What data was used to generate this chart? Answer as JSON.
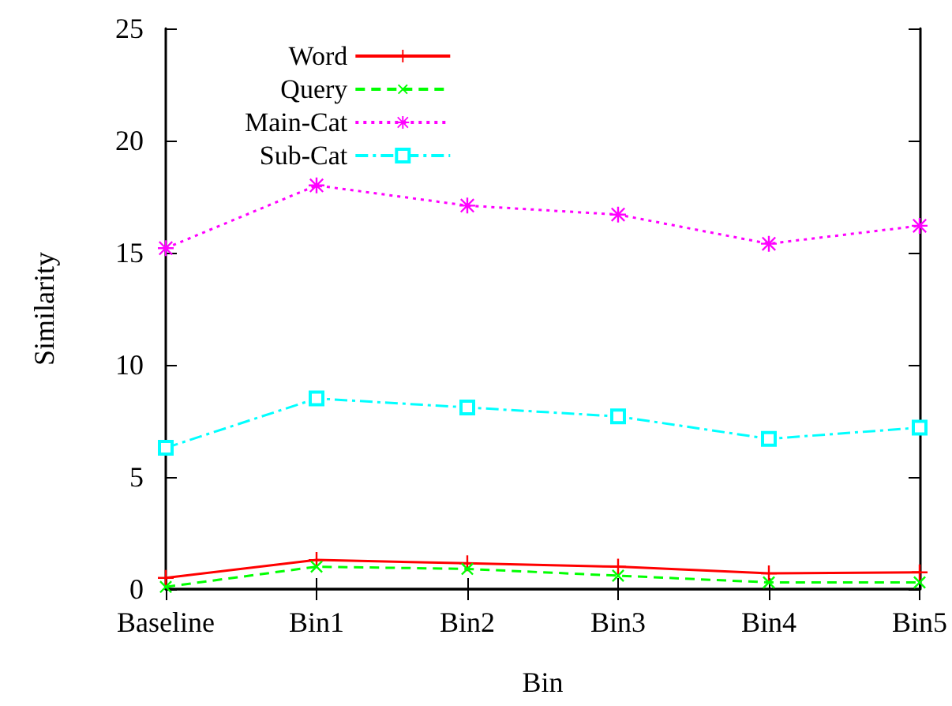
{
  "chart_data": {
    "type": "line",
    "xlabel": "Bin",
    "ylabel": "Similarity",
    "categories": [
      "Baseline",
      "Bin1",
      "Bin2",
      "Bin3",
      "Bin4",
      "Bin5"
    ],
    "ylim": [
      0,
      25
    ],
    "yticks": [
      0,
      5,
      10,
      15,
      20,
      25
    ],
    "grid": false,
    "legend": "top left",
    "series": [
      {
        "name": "Word",
        "color": "#ff0000",
        "marker": "cross",
        "line_style": "solid",
        "values": [
          0.5,
          1.3,
          1.15,
          1.0,
          0.7,
          0.75
        ]
      },
      {
        "name": "Query",
        "color": "#00ff00",
        "marker": "cross",
        "line_style": "dashed",
        "values": [
          0.1,
          1.0,
          0.9,
          0.6,
          0.3,
          0.3
        ]
      },
      {
        "name": "Main-Cat",
        "color": "#ff00ff",
        "marker": "star",
        "line_style": "dotted",
        "values": [
          15.2,
          18.0,
          17.1,
          16.7,
          15.4,
          16.2
        ]
      },
      {
        "name": "Sub-Cat",
        "color": "#00ffff",
        "marker": "square",
        "line_style": "dashdot",
        "values": [
          6.3,
          8.5,
          8.1,
          7.7,
          6.7,
          7.2
        ]
      }
    ]
  }
}
